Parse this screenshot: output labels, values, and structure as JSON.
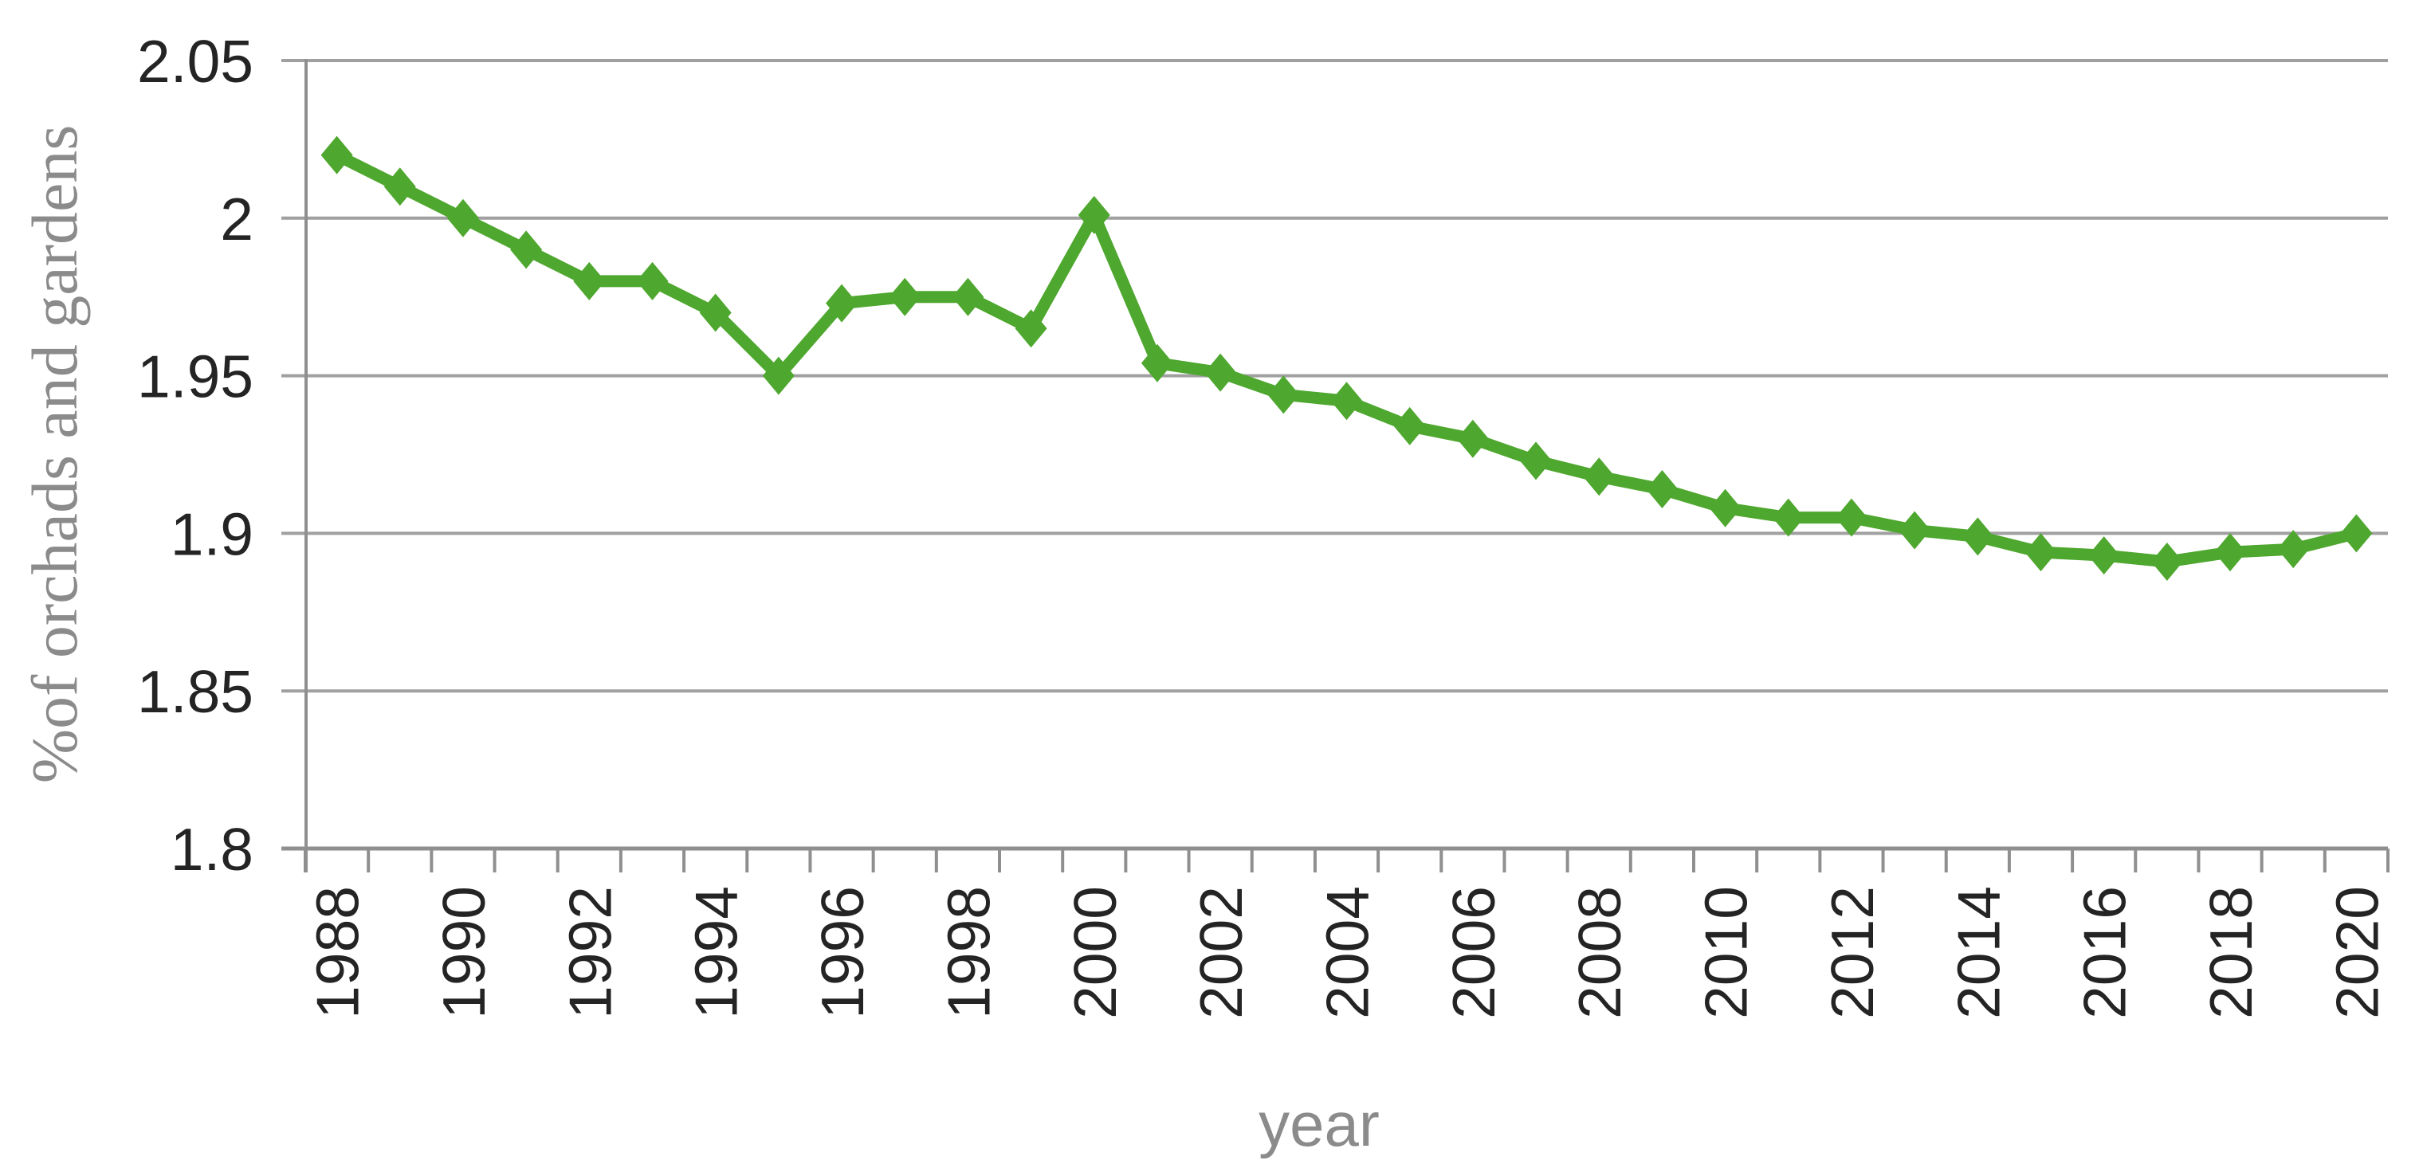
{
  "chart_data": {
    "type": "line",
    "title": "",
    "xlabel": "year",
    "ylabel": "%of orchads and gardens",
    "categories": [
      1988,
      1989,
      1990,
      1991,
      1992,
      1993,
      1994,
      1995,
      1996,
      1997,
      1998,
      1999,
      2000,
      2001,
      2002,
      2003,
      2004,
      2005,
      2006,
      2007,
      2008,
      2009,
      2010,
      2011,
      2012,
      2013,
      2014,
      2015,
      2016,
      2017,
      2018,
      2019,
      2020
    ],
    "values": [
      2.02,
      2.01,
      2.0,
      1.99,
      1.98,
      1.98,
      1.97,
      1.95,
      1.973,
      1.975,
      1.975,
      1.965,
      2.001,
      1.954,
      1.951,
      1.944,
      1.942,
      1.934,
      1.93,
      1.923,
      1.918,
      1.914,
      1.908,
      1.905,
      1.905,
      1.901,
      1.899,
      1.894,
      1.893,
      1.891,
      1.894,
      1.895,
      1.9
    ],
    "ylim": [
      1.8,
      2.05
    ],
    "y_tick_values": [
      2.05,
      2.0,
      1.95,
      1.9,
      1.85,
      1.8
    ],
    "y_tick_labels": [
      "2.05",
      "2",
      "1.95",
      "1.9",
      "1.85",
      "1.8"
    ],
    "x_tick_labels": [
      "1988",
      "1990",
      "1992",
      "1994",
      "1996",
      "1998",
      "2000",
      "2002",
      "2004",
      "2006",
      "2008",
      "2010",
      "2012",
      "2014",
      "2016",
      "2018",
      "2020"
    ],
    "x_minor_ticks_every_year": true,
    "grid": "horizontal",
    "legend": "none",
    "marker": "diamond",
    "colors": {
      "series": "#4ea72e",
      "gridline": "#a0a0a0",
      "axis": "#8f8f8f",
      "tick_label": "#242424",
      "axis_title": "#8b8b8b"
    }
  }
}
